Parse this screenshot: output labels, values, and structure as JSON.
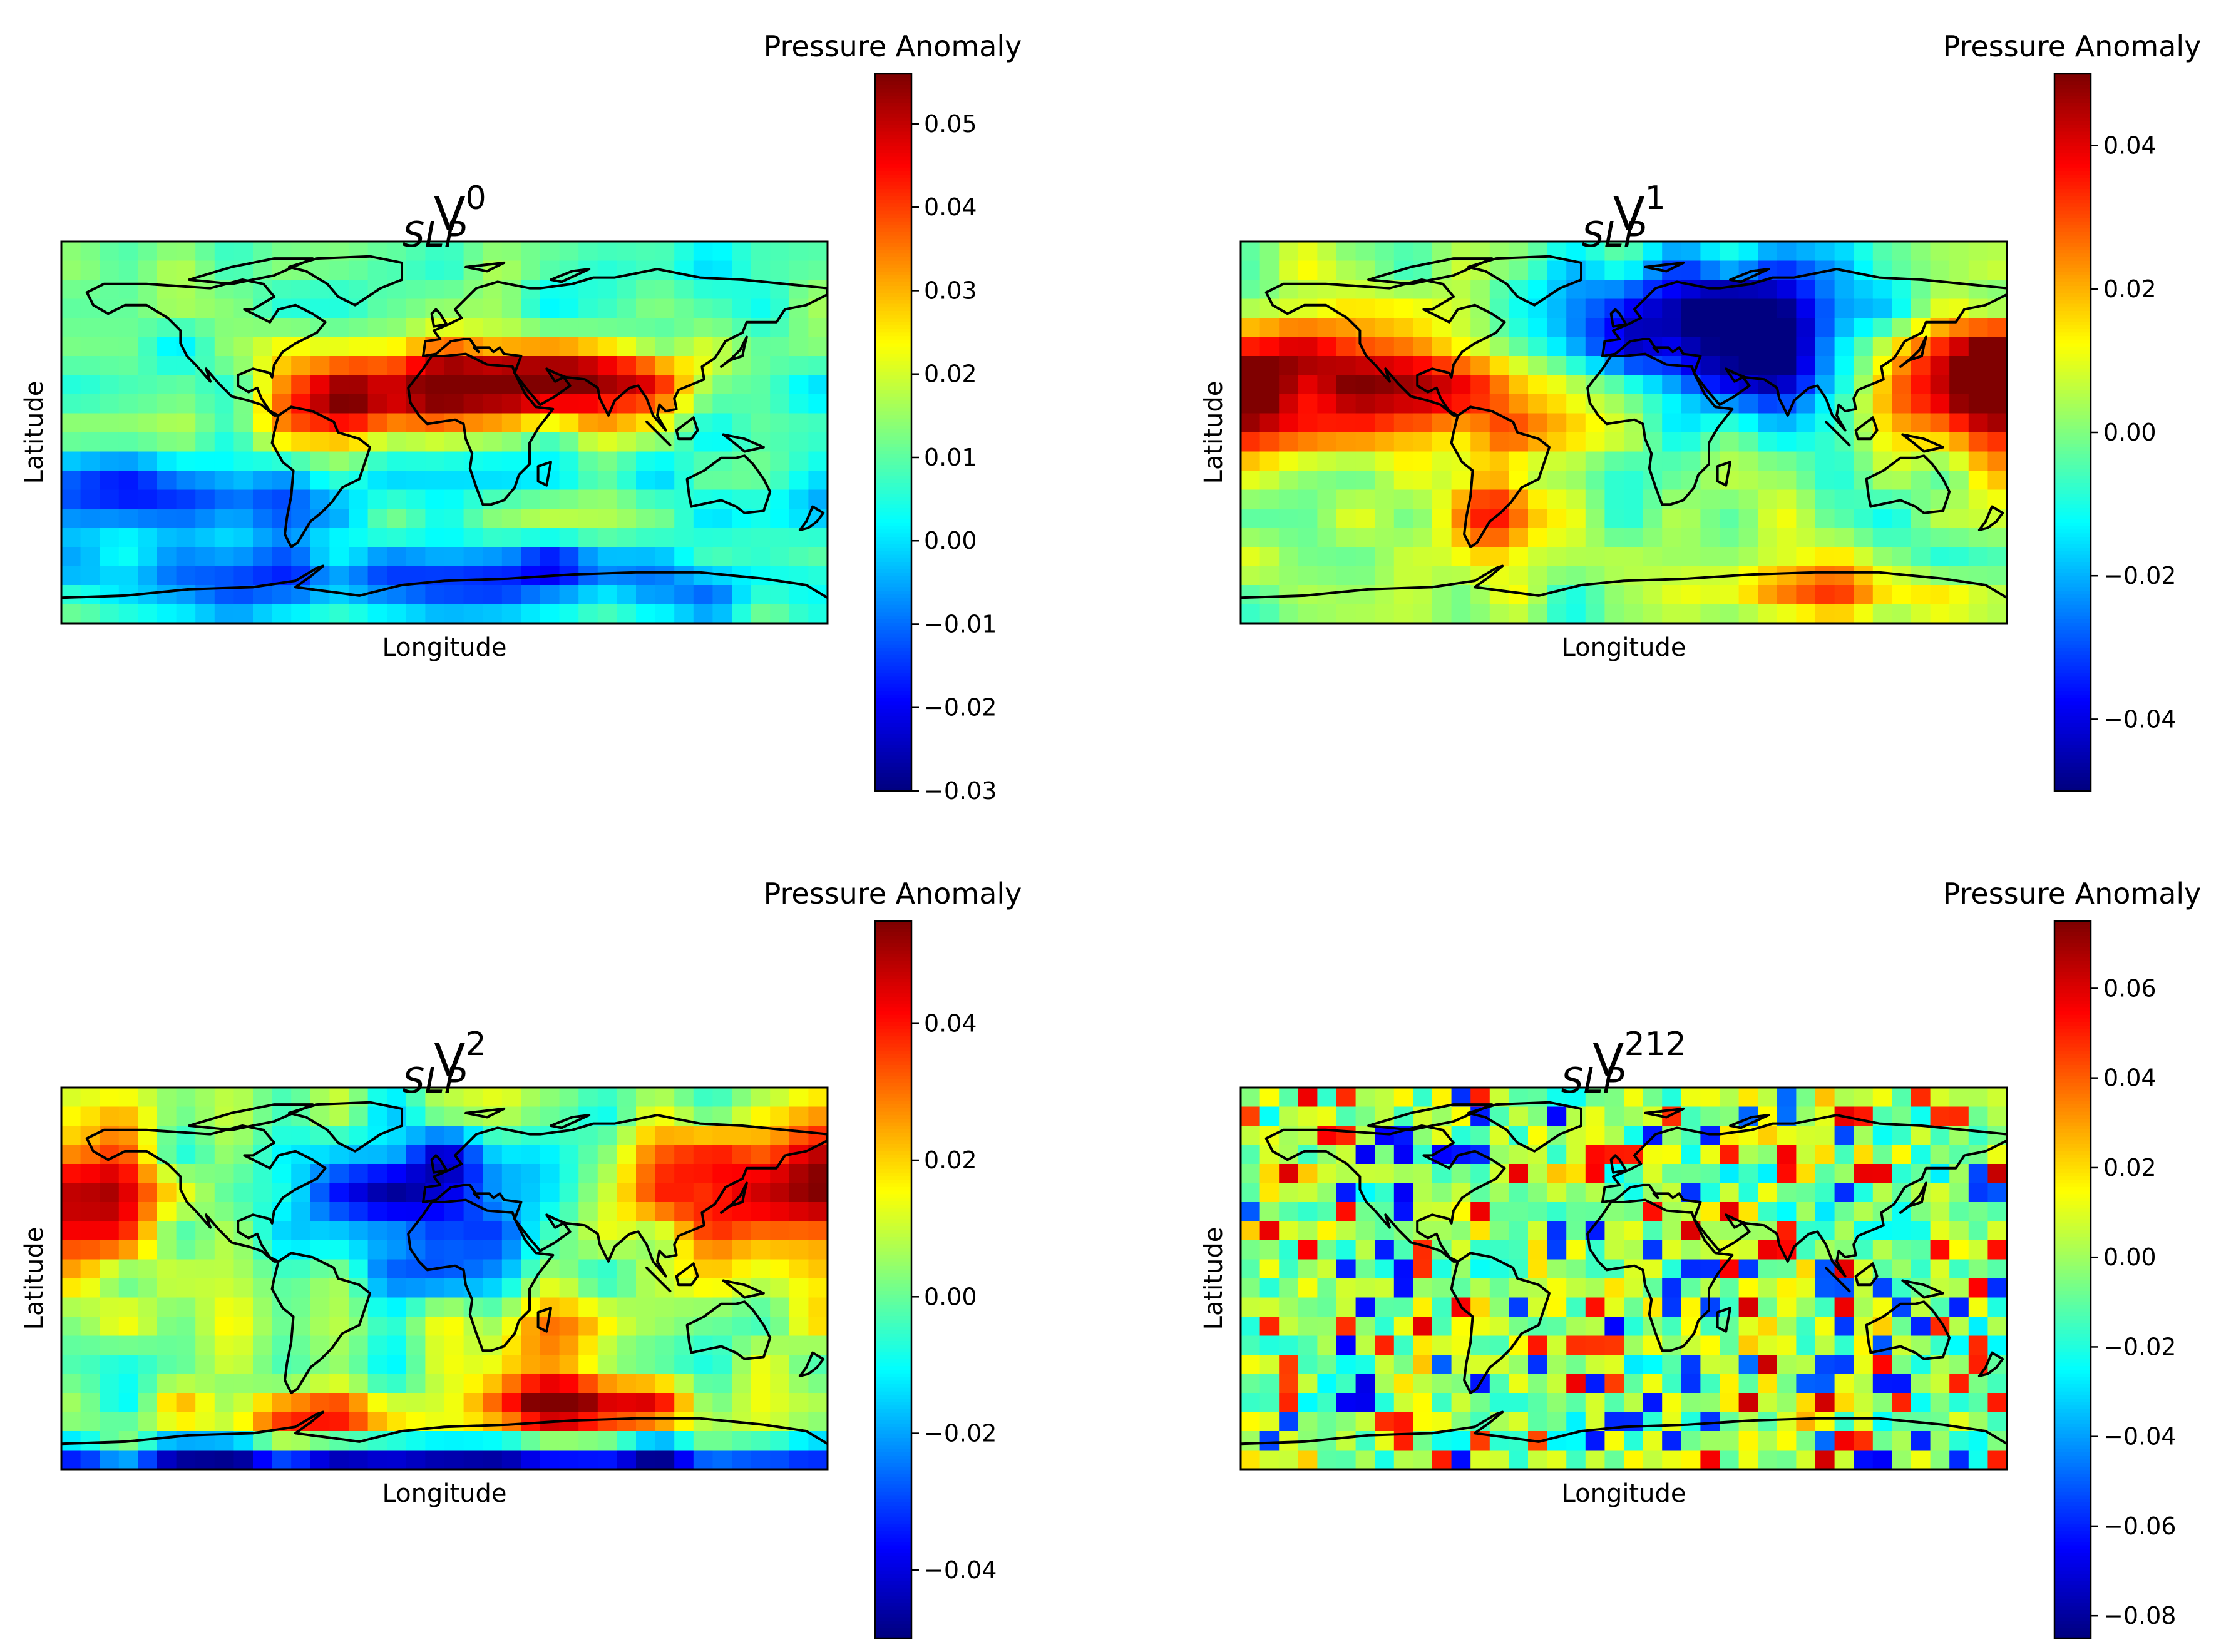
{
  "figure": {
    "type": "geospatial-heatmap-grid",
    "colormap": "jet",
    "colors": {
      "cmap_low": "#00007f",
      "cmap_mid": "#7fff7f",
      "cmap_high": "#7f0000",
      "coastline": "#000000"
    }
  },
  "chart_data": [
    {
      "type": "heatmap",
      "title_base": "V",
      "title_sup": "0",
      "title_sub": "SLP",
      "xlabel": "Longitude",
      "ylabel": "Latitude",
      "colorbar": {
        "label": "Pressure Anomaly",
        "vmin": -0.03,
        "vmax": 0.056,
        "ticks": [
          -0.03,
          -0.02,
          -0.01,
          0.0,
          0.01,
          0.02,
          0.03,
          0.04,
          0.05
        ],
        "tick_labels": [
          "−0.03",
          "−0.02",
          "−0.01",
          "0.00",
          "0.01",
          "0.02",
          "0.03",
          "0.04",
          "0.05"
        ]
      },
      "grid": {
        "cols": 40,
        "rows": 20
      },
      "pattern": "Strong positive anomaly over North Africa, the Middle East and tropical Atlantic; negative values over the Southern Ocean and near Antarctica"
    },
    {
      "type": "heatmap",
      "title_base": "V",
      "title_sup": "1",
      "title_sub": "SLP",
      "xlabel": "Longitude",
      "ylabel": "Latitude",
      "colorbar": {
        "label": "Pressure Anomaly",
        "vmin": -0.05,
        "vmax": 0.05,
        "ticks": [
          -0.04,
          -0.02,
          0.0,
          0.02,
          0.04
        ],
        "tick_labels": [
          "−0.04",
          "−0.02",
          "0.00",
          "0.02",
          "0.04"
        ]
      },
      "grid": {
        "cols": 40,
        "rows": 20
      },
      "pattern": "Negative anomaly over Eurasia and the Middle East; positive anomaly over the Pacific and Atlantic basins and South America"
    },
    {
      "type": "heatmap",
      "title_base": "V",
      "title_sup": "2",
      "title_sub": "SLP",
      "xlabel": "Longitude",
      "ylabel": "Latitude",
      "colorbar": {
        "label": "Pressure Anomaly",
        "vmin": -0.05,
        "vmax": 0.055,
        "ticks": [
          -0.04,
          -0.02,
          0.0,
          0.02,
          0.04
        ],
        "tick_labels": [
          "−0.04",
          "−0.02",
          "0.00",
          "0.02",
          "0.04"
        ]
      },
      "grid": {
        "cols": 40,
        "rows": 20
      },
      "pattern": "Negative anomaly over the North Atlantic, Europe and Africa; positive anomaly over the North Pacific, East Asia and the Indian Ocean"
    },
    {
      "type": "heatmap",
      "title_base": "V",
      "title_sup": "212",
      "title_sub": "SLP",
      "xlabel": "Longitude",
      "ylabel": "Latitude",
      "colorbar": {
        "label": "Pressure Anomaly",
        "vmin": -0.085,
        "vmax": 0.075,
        "ticks": [
          -0.08,
          -0.06,
          -0.04,
          -0.02,
          0.0,
          0.02,
          0.04,
          0.06
        ],
        "tick_labels": [
          "−0.08",
          "−0.06",
          "−0.04",
          "−0.02",
          "0.00",
          "0.02",
          "0.04",
          "0.06"
        ]
      },
      "grid": {
        "cols": 40,
        "rows": 20
      },
      "pattern": "Spatially noisy, speckled anomaly field with no coherent large-scale structure"
    }
  ]
}
